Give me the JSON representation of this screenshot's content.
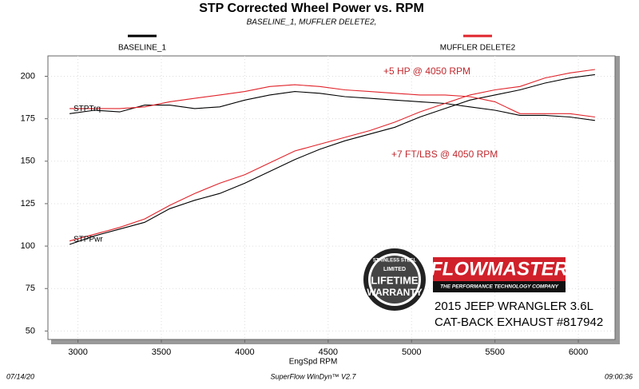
{
  "chart_data": {
    "type": "line",
    "title": "STP Corrected Wheel Power vs. RPM",
    "subtitle": "BASELINE_1, MUFFLER DELETE2,",
    "x_label": "EngSpd RPM",
    "x": [
      2950,
      3100,
      3250,
      3400,
      3550,
      3700,
      3850,
      4000,
      4150,
      4300,
      4450,
      4600,
      4750,
      4900,
      5050,
      5200,
      5350,
      5500,
      5650,
      5800,
      5950,
      6100
    ],
    "curve_labels": {
      "torque": "STPTrq",
      "power": "STPPwr"
    },
    "series": [
      {
        "name": "BASELINE_1",
        "color": "#000000",
        "torque": [
          178,
          180,
          179,
          183,
          183,
          181,
          182,
          186,
          189,
          191,
          190,
          188,
          187,
          186,
          185,
          184,
          182,
          180,
          177,
          177,
          176,
          174
        ],
        "power": [
          101,
          106,
          110,
          114,
          122,
          127,
          131,
          137,
          144,
          151,
          157,
          162,
          166,
          170,
          176,
          181,
          186,
          189,
          192,
          196,
          199,
          201
        ]
      },
      {
        "name": "MUFFLER DELETE2",
        "color": "#e0232a",
        "torque": [
          181,
          181,
          181,
          182,
          185,
          187,
          189,
          191,
          194,
          195,
          194,
          192,
          191,
          190,
          189,
          189,
          188,
          185,
          178,
          178,
          178,
          176
        ],
        "power": [
          103,
          107,
          111,
          116,
          124,
          131,
          137,
          142,
          149,
          156,
          160,
          164,
          168,
          173,
          179,
          184,
          189,
          192,
          194,
          199,
          202,
          204
        ]
      }
    ],
    "xlim": [
      2820,
      6220
    ],
    "xticks": [
      3000,
      3500,
      4000,
      4500,
      5000,
      5500,
      6000
    ],
    "ylim": [
      45,
      212
    ],
    "yticks": [
      50,
      75,
      100,
      125,
      150,
      175,
      200
    ],
    "grid": true,
    "annotations": [
      "+5 HP @ 4050 RPM",
      "+7 FT/LBS @ 4050 RPM"
    ],
    "footer": {
      "date": "07/14/20",
      "software": "SuperFlow WinDyn™ V2.7",
      "time": "09:00:36"
    },
    "logo": {
      "brand": "FLOWMASTER",
      "tagline": "THE PERFORMANCE TECHNOLOGY COMPANY"
    },
    "badge": {
      "top": "STAINLESS STEEL",
      "middle": "LIMITED",
      "line1": "LIFETIME",
      "line2": "WARRANTY"
    },
    "caption": [
      "2015 JEEP WRANGLER 3.6L",
      "CAT-BACK EXHAUST #817942"
    ]
  }
}
